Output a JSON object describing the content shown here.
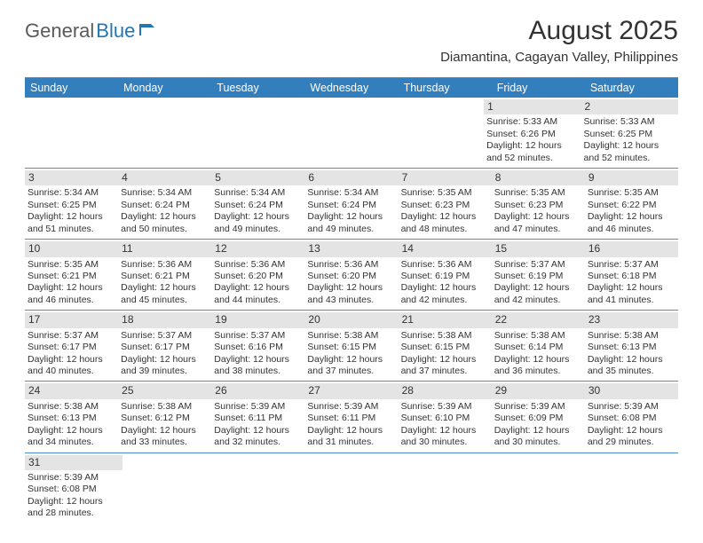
{
  "logo": {
    "part1": "General",
    "part2": "Blue"
  },
  "title": "August 2025",
  "subtitle": "Diamantina, Cagayan Valley, Philippines",
  "colors": {
    "header_bg": "#337fbd",
    "header_text": "#ffffff",
    "daynum_bg": "#e4e4e4",
    "border": "#4a8fc7",
    "body_text": "#333333",
    "logo_dark": "#5a5a5a",
    "logo_blue": "#1f77b6"
  },
  "day_headers": [
    "Sunday",
    "Monday",
    "Tuesday",
    "Wednesday",
    "Thursday",
    "Friday",
    "Saturday"
  ],
  "weeks": [
    [
      null,
      null,
      null,
      null,
      null,
      {
        "n": "1",
        "sunrise": "Sunrise: 5:33 AM",
        "sunset": "Sunset: 6:26 PM",
        "daylight": "Daylight: 12 hours and 52 minutes."
      },
      {
        "n": "2",
        "sunrise": "Sunrise: 5:33 AM",
        "sunset": "Sunset: 6:25 PM",
        "daylight": "Daylight: 12 hours and 52 minutes."
      }
    ],
    [
      {
        "n": "3",
        "sunrise": "Sunrise: 5:34 AM",
        "sunset": "Sunset: 6:25 PM",
        "daylight": "Daylight: 12 hours and 51 minutes."
      },
      {
        "n": "4",
        "sunrise": "Sunrise: 5:34 AM",
        "sunset": "Sunset: 6:24 PM",
        "daylight": "Daylight: 12 hours and 50 minutes."
      },
      {
        "n": "5",
        "sunrise": "Sunrise: 5:34 AM",
        "sunset": "Sunset: 6:24 PM",
        "daylight": "Daylight: 12 hours and 49 minutes."
      },
      {
        "n": "6",
        "sunrise": "Sunrise: 5:34 AM",
        "sunset": "Sunset: 6:24 PM",
        "daylight": "Daylight: 12 hours and 49 minutes."
      },
      {
        "n": "7",
        "sunrise": "Sunrise: 5:35 AM",
        "sunset": "Sunset: 6:23 PM",
        "daylight": "Daylight: 12 hours and 48 minutes."
      },
      {
        "n": "8",
        "sunrise": "Sunrise: 5:35 AM",
        "sunset": "Sunset: 6:23 PM",
        "daylight": "Daylight: 12 hours and 47 minutes."
      },
      {
        "n": "9",
        "sunrise": "Sunrise: 5:35 AM",
        "sunset": "Sunset: 6:22 PM",
        "daylight": "Daylight: 12 hours and 46 minutes."
      }
    ],
    [
      {
        "n": "10",
        "sunrise": "Sunrise: 5:35 AM",
        "sunset": "Sunset: 6:21 PM",
        "daylight": "Daylight: 12 hours and 46 minutes."
      },
      {
        "n": "11",
        "sunrise": "Sunrise: 5:36 AM",
        "sunset": "Sunset: 6:21 PM",
        "daylight": "Daylight: 12 hours and 45 minutes."
      },
      {
        "n": "12",
        "sunrise": "Sunrise: 5:36 AM",
        "sunset": "Sunset: 6:20 PM",
        "daylight": "Daylight: 12 hours and 44 minutes."
      },
      {
        "n": "13",
        "sunrise": "Sunrise: 5:36 AM",
        "sunset": "Sunset: 6:20 PM",
        "daylight": "Daylight: 12 hours and 43 minutes."
      },
      {
        "n": "14",
        "sunrise": "Sunrise: 5:36 AM",
        "sunset": "Sunset: 6:19 PM",
        "daylight": "Daylight: 12 hours and 42 minutes."
      },
      {
        "n": "15",
        "sunrise": "Sunrise: 5:37 AM",
        "sunset": "Sunset: 6:19 PM",
        "daylight": "Daylight: 12 hours and 42 minutes."
      },
      {
        "n": "16",
        "sunrise": "Sunrise: 5:37 AM",
        "sunset": "Sunset: 6:18 PM",
        "daylight": "Daylight: 12 hours and 41 minutes."
      }
    ],
    [
      {
        "n": "17",
        "sunrise": "Sunrise: 5:37 AM",
        "sunset": "Sunset: 6:17 PM",
        "daylight": "Daylight: 12 hours and 40 minutes."
      },
      {
        "n": "18",
        "sunrise": "Sunrise: 5:37 AM",
        "sunset": "Sunset: 6:17 PM",
        "daylight": "Daylight: 12 hours and 39 minutes."
      },
      {
        "n": "19",
        "sunrise": "Sunrise: 5:37 AM",
        "sunset": "Sunset: 6:16 PM",
        "daylight": "Daylight: 12 hours and 38 minutes."
      },
      {
        "n": "20",
        "sunrise": "Sunrise: 5:38 AM",
        "sunset": "Sunset: 6:15 PM",
        "daylight": "Daylight: 12 hours and 37 minutes."
      },
      {
        "n": "21",
        "sunrise": "Sunrise: 5:38 AM",
        "sunset": "Sunset: 6:15 PM",
        "daylight": "Daylight: 12 hours and 37 minutes."
      },
      {
        "n": "22",
        "sunrise": "Sunrise: 5:38 AM",
        "sunset": "Sunset: 6:14 PM",
        "daylight": "Daylight: 12 hours and 36 minutes."
      },
      {
        "n": "23",
        "sunrise": "Sunrise: 5:38 AM",
        "sunset": "Sunset: 6:13 PM",
        "daylight": "Daylight: 12 hours and 35 minutes."
      }
    ],
    [
      {
        "n": "24",
        "sunrise": "Sunrise: 5:38 AM",
        "sunset": "Sunset: 6:13 PM",
        "daylight": "Daylight: 12 hours and 34 minutes."
      },
      {
        "n": "25",
        "sunrise": "Sunrise: 5:38 AM",
        "sunset": "Sunset: 6:12 PM",
        "daylight": "Daylight: 12 hours and 33 minutes."
      },
      {
        "n": "26",
        "sunrise": "Sunrise: 5:39 AM",
        "sunset": "Sunset: 6:11 PM",
        "daylight": "Daylight: 12 hours and 32 minutes."
      },
      {
        "n": "27",
        "sunrise": "Sunrise: 5:39 AM",
        "sunset": "Sunset: 6:11 PM",
        "daylight": "Daylight: 12 hours and 31 minutes."
      },
      {
        "n": "28",
        "sunrise": "Sunrise: 5:39 AM",
        "sunset": "Sunset: 6:10 PM",
        "daylight": "Daylight: 12 hours and 30 minutes."
      },
      {
        "n": "29",
        "sunrise": "Sunrise: 5:39 AM",
        "sunset": "Sunset: 6:09 PM",
        "daylight": "Daylight: 12 hours and 30 minutes."
      },
      {
        "n": "30",
        "sunrise": "Sunrise: 5:39 AM",
        "sunset": "Sunset: 6:08 PM",
        "daylight": "Daylight: 12 hours and 29 minutes."
      }
    ],
    [
      {
        "n": "31",
        "sunrise": "Sunrise: 5:39 AM",
        "sunset": "Sunset: 6:08 PM",
        "daylight": "Daylight: 12 hours and 28 minutes."
      },
      null,
      null,
      null,
      null,
      null,
      null
    ]
  ]
}
